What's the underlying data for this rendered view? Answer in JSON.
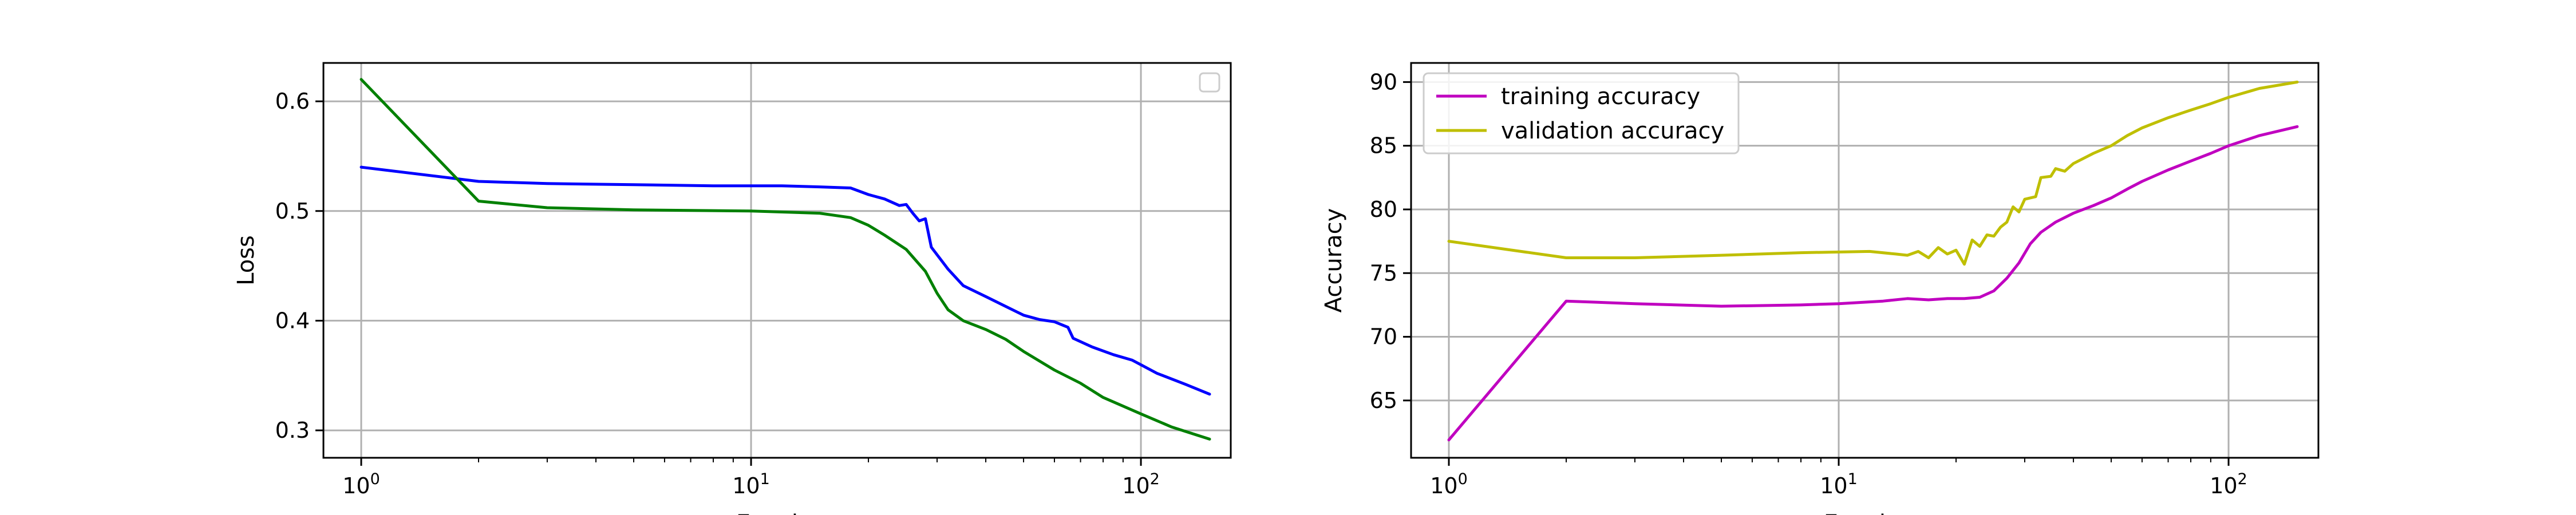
{
  "colors": {
    "blue": "#0000ff",
    "green": "#008000",
    "magenta": "#c000c0",
    "olive": "#bfbf00"
  },
  "chart_data": [
    {
      "type": "line",
      "xlabel": "Epochs",
      "ylabel": "Loss",
      "xscale": "log",
      "xlim": [
        0.8,
        170
      ],
      "ylim": [
        0.275,
        0.635
      ],
      "xticks": [
        {
          "value": 1,
          "label": "10",
          "exp": "0"
        },
        {
          "value": 10,
          "label": "10",
          "exp": "1"
        },
        {
          "value": 100,
          "label": "10",
          "exp": "2"
        }
      ],
      "yticks": [
        0.3,
        0.4,
        0.5,
        0.6
      ],
      "ytick_labels": [
        "0.3",
        "0.4",
        "0.5",
        "0.6"
      ],
      "grid": true,
      "legend": {
        "placement": "upper right",
        "entries": []
      },
      "series": [
        {
          "color_key": "blue",
          "points": [
            [
              1,
              0.54
            ],
            [
              2,
              0.527
            ],
            [
              3,
              0.525
            ],
            [
              5,
              0.524
            ],
            [
              8,
              0.523
            ],
            [
              12,
              0.523
            ],
            [
              15,
              0.522
            ],
            [
              18,
              0.521
            ],
            [
              20,
              0.515
            ],
            [
              22,
              0.511
            ],
            [
              24,
              0.505
            ],
            [
              25,
              0.506
            ],
            [
              26,
              0.498
            ],
            [
              27,
              0.491
            ],
            [
              28,
              0.493
            ],
            [
              29,
              0.467
            ],
            [
              32,
              0.447
            ],
            [
              35,
              0.432
            ],
            [
              40,
              0.422
            ],
            [
              45,
              0.413
            ],
            [
              50,
              0.405
            ],
            [
              55,
              0.401
            ],
            [
              60,
              0.399
            ],
            [
              65,
              0.394
            ],
            [
              67,
              0.384
            ],
            [
              75,
              0.376
            ],
            [
              85,
              0.369
            ],
            [
              95,
              0.364
            ],
            [
              110,
              0.352
            ],
            [
              130,
              0.342
            ],
            [
              150,
              0.333
            ]
          ]
        },
        {
          "color_key": "green",
          "points": [
            [
              1,
              0.62
            ],
            [
              2,
              0.509
            ],
            [
              3,
              0.503
            ],
            [
              5,
              0.501
            ],
            [
              10,
              0.5
            ],
            [
              15,
              0.498
            ],
            [
              18,
              0.494
            ],
            [
              20,
              0.487
            ],
            [
              22,
              0.478
            ],
            [
              25,
              0.465
            ],
            [
              28,
              0.445
            ],
            [
              30,
              0.425
            ],
            [
              32,
              0.41
            ],
            [
              35,
              0.4
            ],
            [
              40,
              0.392
            ],
            [
              45,
              0.383
            ],
            [
              50,
              0.372
            ],
            [
              60,
              0.355
            ],
            [
              70,
              0.343
            ],
            [
              80,
              0.33
            ],
            [
              100,
              0.315
            ],
            [
              120,
              0.303
            ],
            [
              150,
              0.292
            ]
          ]
        }
      ]
    },
    {
      "type": "line",
      "xlabel": "Epochs",
      "ylabel": "Accuracy",
      "xscale": "log",
      "xlim": [
        0.8,
        170
      ],
      "ylim": [
        60.5,
        91.5
      ],
      "xticks": [
        {
          "value": 1,
          "label": "10",
          "exp": "0"
        },
        {
          "value": 10,
          "label": "10",
          "exp": "1"
        },
        {
          "value": 100,
          "label": "10",
          "exp": "2"
        }
      ],
      "yticks": [
        65,
        70,
        75,
        80,
        85,
        90
      ],
      "ytick_labels": [
        "65",
        "70",
        "75",
        "80",
        "85",
        "90"
      ],
      "grid": true,
      "legend": {
        "placement": "upper left",
        "entries": [
          "training accuracy",
          "validation accuracy"
        ]
      },
      "series": [
        {
          "name": "training accuracy",
          "color_key": "magenta",
          "points": [
            [
              1,
              61.9
            ],
            [
              2,
              72.8
            ],
            [
              3,
              72.6
            ],
            [
              5,
              72.4
            ],
            [
              8,
              72.5
            ],
            [
              10,
              72.6
            ],
            [
              13,
              72.8
            ],
            [
              15,
              73.0
            ],
            [
              17,
              72.9
            ],
            [
              19,
              73.0
            ],
            [
              21,
              73.0
            ],
            [
              23,
              73.1
            ],
            [
              25,
              73.6
            ],
            [
              27,
              74.6
            ],
            [
              29,
              75.8
            ],
            [
              31,
              77.3
            ],
            [
              33,
              78.2
            ],
            [
              36,
              79.0
            ],
            [
              40,
              79.7
            ],
            [
              45,
              80.3
            ],
            [
              50,
              80.9
            ],
            [
              55,
              81.6
            ],
            [
              60,
              82.2
            ],
            [
              70,
              83.1
            ],
            [
              80,
              83.8
            ],
            [
              90,
              84.4
            ],
            [
              100,
              85.0
            ],
            [
              120,
              85.8
            ],
            [
              150,
              86.5
            ]
          ]
        },
        {
          "name": "validation accuracy",
          "color_key": "olive",
          "points": [
            [
              1,
              77.5
            ],
            [
              2,
              76.2
            ],
            [
              3,
              76.2
            ],
            [
              5,
              76.4
            ],
            [
              8,
              76.6
            ],
            [
              12,
              76.7
            ],
            [
              14,
              76.5
            ],
            [
              15,
              76.4
            ],
            [
              16,
              76.7
            ],
            [
              17,
              76.2
            ],
            [
              18,
              77.0
            ],
            [
              19,
              76.5
            ],
            [
              20,
              76.8
            ],
            [
              21,
              75.7
            ],
            [
              22,
              77.6
            ],
            [
              23,
              77.1
            ],
            [
              24,
              78.0
            ],
            [
              25,
              77.9
            ],
            [
              26,
              78.6
            ],
            [
              27,
              79.0
            ],
            [
              28,
              80.2
            ],
            [
              29,
              79.8
            ],
            [
              30,
              80.8
            ],
            [
              32,
              81.0
            ],
            [
              33,
              82.5
            ],
            [
              35,
              82.6
            ],
            [
              36,
              83.2
            ],
            [
              38,
              83.0
            ],
            [
              40,
              83.6
            ],
            [
              45,
              84.4
            ],
            [
              50,
              85.0
            ],
            [
              55,
              85.8
            ],
            [
              60,
              86.4
            ],
            [
              70,
              87.2
            ],
            [
              80,
              87.8
            ],
            [
              90,
              88.3
            ],
            [
              100,
              88.8
            ],
            [
              120,
              89.5
            ],
            [
              150,
              90.0
            ]
          ]
        }
      ]
    }
  ]
}
